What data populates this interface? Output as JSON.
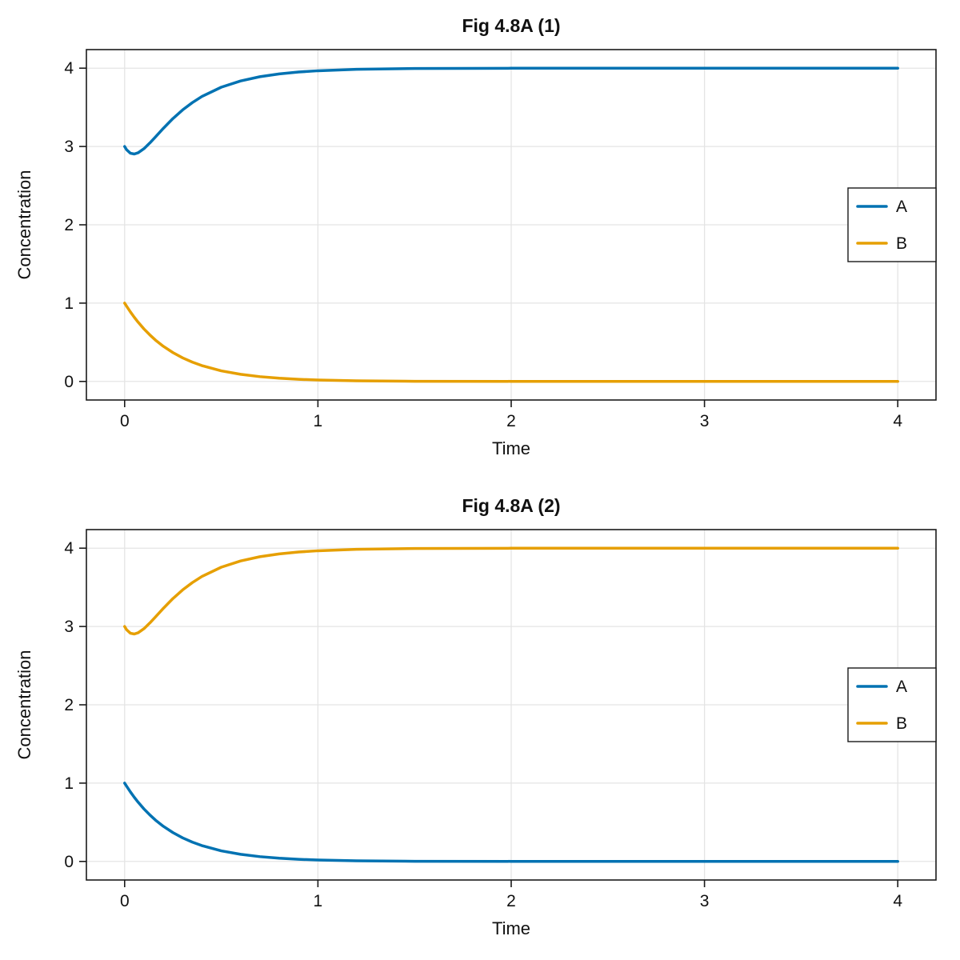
{
  "figure": {
    "background": "#ffffff",
    "text_color": "#111111",
    "grid_color": "#e4e4e4"
  },
  "chart_data": [
    {
      "type": "line",
      "title": "Fig 4.8A (1)",
      "xlabel": "Time",
      "ylabel": "Concentration",
      "xlim": [
        0,
        4
      ],
      "ylim": [
        0,
        4
      ],
      "xticks": [
        0,
        1,
        2,
        3,
        4
      ],
      "yticks": [
        0,
        1,
        2,
        3,
        4
      ],
      "grid": true,
      "legend_position": "right-center",
      "x": [
        0,
        0.01,
        0.03,
        0.05,
        0.07,
        0.1,
        0.13,
        0.16,
        0.2,
        0.25,
        0.3,
        0.35,
        0.4,
        0.5,
        0.6,
        0.7,
        0.8,
        0.9,
        1.0,
        1.2,
        1.5,
        2.0,
        2.5,
        3.0,
        3.5,
        4.0
      ],
      "series": [
        {
          "name": "A",
          "color": "#0072B2",
          "values": [
            3.0,
            2.959,
            2.914,
            2.904,
            2.92,
            2.972,
            3.044,
            3.123,
            3.231,
            3.357,
            3.467,
            3.56,
            3.639,
            3.757,
            3.837,
            3.891,
            3.927,
            3.951,
            3.967,
            3.985,
            3.996,
            3.999,
            4.0,
            4.0,
            4.0,
            4.0
          ]
        },
        {
          "name": "B",
          "color": "#E69F00",
          "values": [
            1.0,
            0.961,
            0.887,
            0.819,
            0.756,
            0.67,
            0.595,
            0.527,
            0.449,
            0.368,
            0.301,
            0.247,
            0.202,
            0.135,
            0.091,
            0.061,
            0.041,
            0.027,
            0.018,
            0.008,
            0.002,
            0.001,
            0.0,
            0.0,
            0.0,
            0.0
          ]
        }
      ]
    },
    {
      "type": "line",
      "title": "Fig 4.8A (2)",
      "xlabel": "Time",
      "ylabel": "Concentration",
      "xlim": [
        0,
        4
      ],
      "ylim": [
        0,
        4
      ],
      "xticks": [
        0,
        1,
        2,
        3,
        4
      ],
      "yticks": [
        0,
        1,
        2,
        3,
        4
      ],
      "grid": true,
      "legend_position": "right-center",
      "x": [
        0,
        0.01,
        0.03,
        0.05,
        0.07,
        0.1,
        0.13,
        0.16,
        0.2,
        0.25,
        0.3,
        0.35,
        0.4,
        0.5,
        0.6,
        0.7,
        0.8,
        0.9,
        1.0,
        1.2,
        1.5,
        2.0,
        2.5,
        3.0,
        3.5,
        4.0
      ],
      "series": [
        {
          "name": "A",
          "color": "#0072B2",
          "values": [
            1.0,
            0.961,
            0.887,
            0.819,
            0.756,
            0.67,
            0.595,
            0.527,
            0.449,
            0.368,
            0.301,
            0.247,
            0.202,
            0.135,
            0.091,
            0.061,
            0.041,
            0.027,
            0.018,
            0.008,
            0.002,
            0.001,
            0.0,
            0.0,
            0.0,
            0.0
          ]
        },
        {
          "name": "B",
          "color": "#E69F00",
          "values": [
            3.0,
            2.959,
            2.914,
            2.904,
            2.92,
            2.972,
            3.044,
            3.123,
            3.231,
            3.357,
            3.467,
            3.56,
            3.639,
            3.757,
            3.837,
            3.891,
            3.927,
            3.951,
            3.967,
            3.985,
            3.996,
            3.999,
            4.0,
            4.0,
            4.0,
            4.0
          ]
        }
      ]
    }
  ]
}
